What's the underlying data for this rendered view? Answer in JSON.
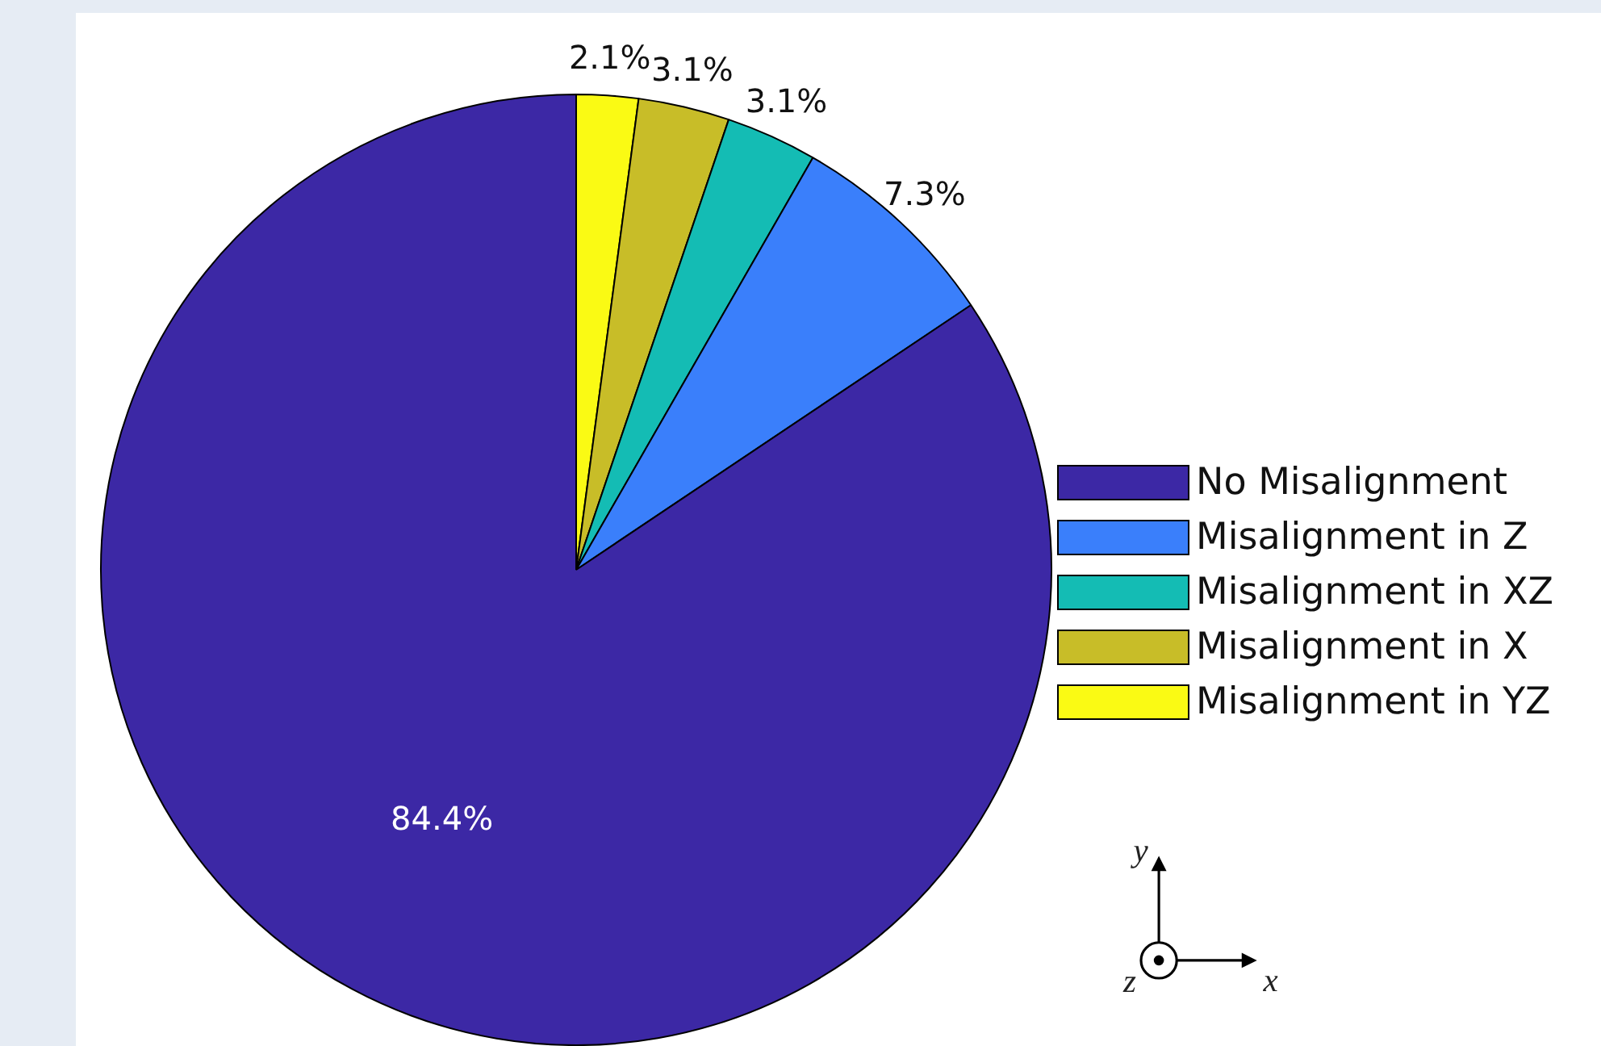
{
  "chart_data": {
    "type": "pie",
    "categories": [
      "No Misalignment",
      "Misalignment in Z",
      "Misalignment in XZ",
      "Misalignment in X",
      "Misalignment in YZ"
    ],
    "values": [
      84.4,
      7.3,
      3.1,
      3.1,
      2.1
    ],
    "colors": [
      "#3c28a5",
      "#3a7ffb",
      "#14bcb4",
      "#c8bd28",
      "#fafa14"
    ],
    "value_labels": [
      "84.4%",
      "7.3%",
      "3.1%",
      "3.1%",
      "2.1%"
    ],
    "legend": "right",
    "annotations": [
      "y",
      "z",
      "x"
    ]
  }
}
